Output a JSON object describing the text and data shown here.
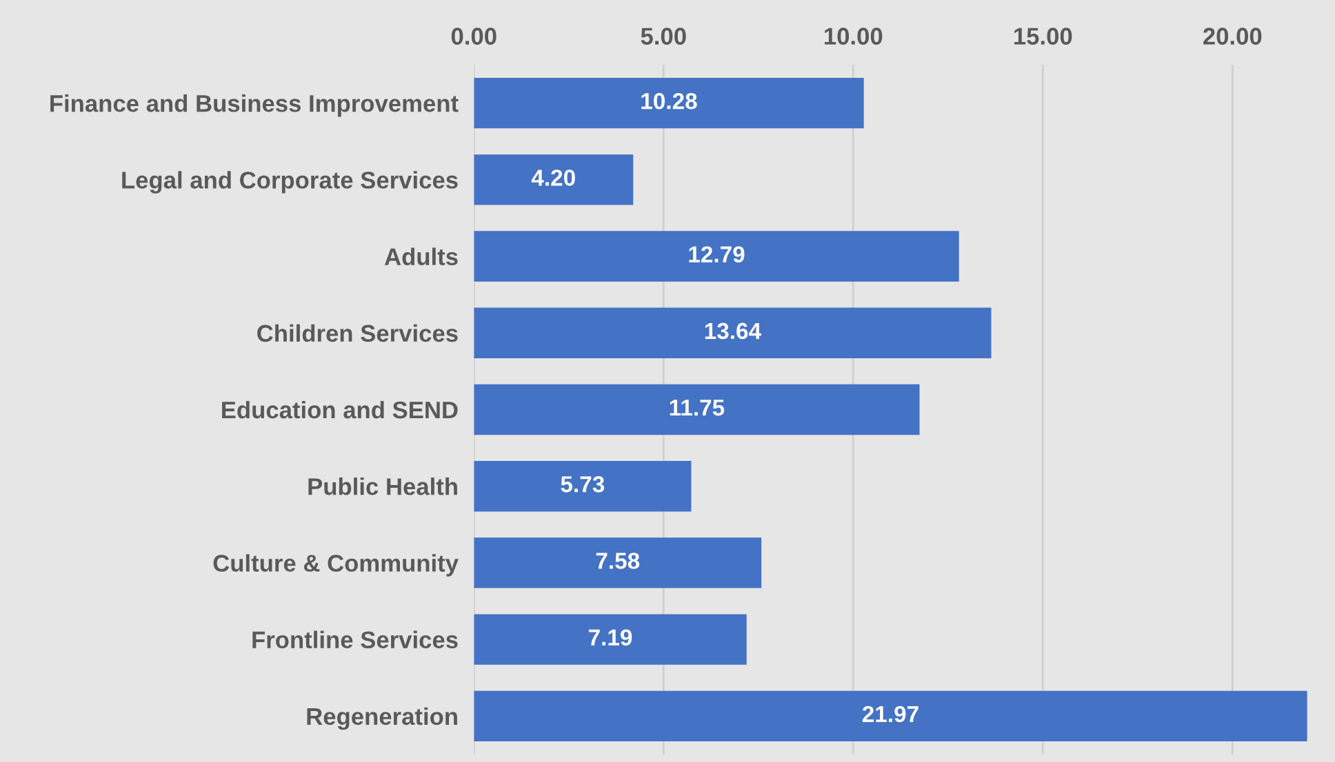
{
  "chart_data": {
    "type": "bar",
    "orientation": "horizontal",
    "categories": [
      "Finance and Business Improvement",
      "Legal and Corporate Services",
      "Adults",
      "Children Services",
      "Education and SEND",
      "Public Health",
      "Culture & Community",
      "Frontline Services",
      "Regeneration"
    ],
    "values": [
      10.28,
      4.2,
      12.79,
      13.64,
      11.75,
      5.73,
      7.58,
      7.19,
      21.97
    ],
    "value_labels": [
      "10.28",
      "4.20",
      "12.79",
      "13.64",
      "11.75",
      "5.73",
      "7.58",
      "7.19",
      "21.97"
    ],
    "color": "#4472c4",
    "xlim": [
      0,
      22
    ],
    "xticks": [
      {
        "value": 0,
        "label": "0.00"
      },
      {
        "value": 5,
        "label": "5.00"
      },
      {
        "value": 10,
        "label": "10.00"
      },
      {
        "value": 15,
        "label": "15.00"
      },
      {
        "value": 20,
        "label": "20.00"
      }
    ],
    "grid": "x"
  }
}
